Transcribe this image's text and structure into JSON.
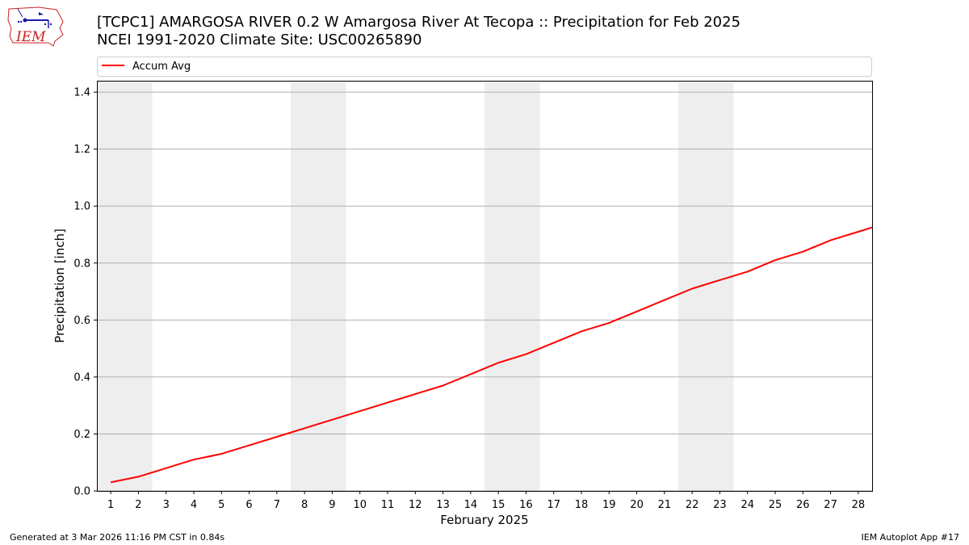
{
  "header": {
    "logo_text": "IEM",
    "title_line1": "[TCPC1] AMARGOSA RIVER 0.2 W Amargosa River At Tecopa :: Precipitation for Feb 2025",
    "title_line2": "NCEI 1991-2020 Climate Site: USC00265890"
  },
  "footer": {
    "generated": "Generated at 3 Mar 2026 11:16 PM CST in 0.84s",
    "app": "IEM Autoplot App #17"
  },
  "colors": {
    "line": "#ff0000",
    "weekend": "#eeeeee",
    "grid": "#b0b0b0"
  },
  "chart_data": {
    "type": "line",
    "xlabel": "February 2025",
    "ylabel": "Precipitation [inch]",
    "xlim": [
      0.5,
      28.5
    ],
    "ylim": [
      0,
      1.44
    ],
    "x_ticks": [
      1,
      2,
      3,
      4,
      5,
      6,
      7,
      8,
      9,
      10,
      11,
      12,
      13,
      14,
      15,
      16,
      17,
      18,
      19,
      20,
      21,
      22,
      23,
      24,
      25,
      26,
      27,
      28
    ],
    "y_ticks": [
      0.0,
      0.2,
      0.4,
      0.6,
      0.8,
      1.0,
      1.2,
      1.4
    ],
    "y_tick_labels": [
      "0.0",
      "0.2",
      "0.4",
      "0.6",
      "0.8",
      "1.0",
      "1.2",
      "1.4"
    ],
    "grid": "horizontal",
    "legend_position": "top",
    "shaded_days": [
      [
        1,
        2
      ],
      [
        8,
        9
      ],
      [
        15,
        16
      ],
      [
        22,
        23
      ]
    ],
    "series": [
      {
        "name": "Accum Avg",
        "x": [
          1,
          2,
          3,
          4,
          5,
          6,
          7,
          8,
          9,
          10,
          11,
          12,
          13,
          14,
          15,
          16,
          17,
          18,
          19,
          20,
          21,
          22,
          23,
          24,
          25,
          26,
          27,
          28,
          28.5
        ],
        "values": [
          0.03,
          0.05,
          0.08,
          0.11,
          0.13,
          0.16,
          0.19,
          0.22,
          0.25,
          0.28,
          0.31,
          0.34,
          0.37,
          0.41,
          0.45,
          0.48,
          0.52,
          0.56,
          0.59,
          0.63,
          0.67,
          0.71,
          0.74,
          0.77,
          0.81,
          0.84,
          0.88,
          0.91,
          0.925
        ]
      }
    ]
  }
}
